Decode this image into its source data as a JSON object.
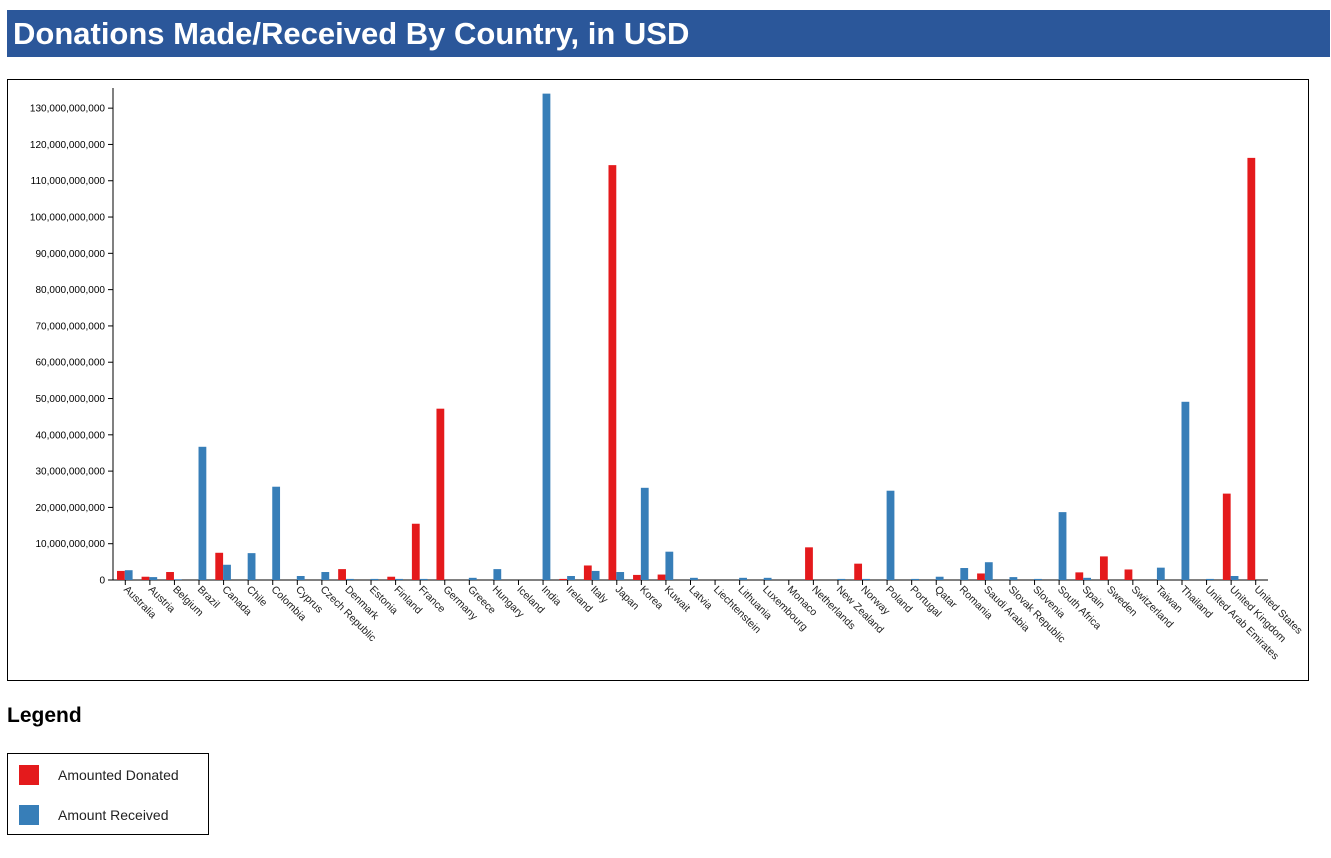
{
  "header": {
    "title": "Donations Made/Received By Country, in USD"
  },
  "legend": {
    "heading": "Legend",
    "items": [
      {
        "label": "Amounted Donated",
        "color": "#e41a1c"
      },
      {
        "label": "Amount Received",
        "color": "#377eb8"
      }
    ]
  },
  "chart_data": {
    "type": "bar",
    "title": "Donations Made/Received By Country, in USD",
    "xlabel": "",
    "ylabel": "",
    "ylim": [
      0,
      135000000000
    ],
    "ytick_step": 10000000000,
    "grid": false,
    "legend_position": "below chart",
    "categories": [
      "Australia",
      "Austria",
      "Belgium",
      "Brazil",
      "Canada",
      "Chile",
      "Colombia",
      "Cyprus",
      "Czech Republic",
      "Denmark",
      "Estonia",
      "Finland",
      "France",
      "Germany",
      "Greece",
      "Hungary",
      "Iceland",
      "India",
      "Ireland",
      "Italy",
      "Japan",
      "Korea",
      "Kuwait",
      "Latvia",
      "Liechtenstein",
      "Lithuania",
      "Luxembourg",
      "Monaco",
      "Netherlands",
      "New Zealand",
      "Norway",
      "Poland",
      "Portugal",
      "Qatar",
      "Romania",
      "Saudi Arabia",
      "Slovak Republic",
      "Slovenia",
      "South Africa",
      "Spain",
      "Sweden",
      "Switzerland",
      "Taiwan",
      "Thailand",
      "United Arab Emirates",
      "United Kingdom",
      "United States"
    ],
    "series": [
      {
        "name": "Amounted Donated",
        "color": "#e41a1c",
        "values": [
          2500000000,
          900000000,
          2200000000,
          0,
          7500000000,
          0,
          0,
          0,
          0,
          3000000000,
          0,
          900000000,
          15500000000,
          47200000000,
          0,
          0,
          0,
          0,
          300000000,
          4000000000,
          114300000000,
          1400000000,
          1500000000,
          0,
          0,
          0,
          0,
          0,
          9000000000,
          0,
          4500000000,
          0,
          0,
          0,
          0,
          1800000000,
          0,
          0,
          0,
          2100000000,
          6500000000,
          2900000000,
          0,
          0,
          0,
          23800000000,
          116300000000
        ]
      },
      {
        "name": "Amount Received",
        "color": "#377eb8",
        "values": [
          2700000000,
          800000000,
          200000000,
          36700000000,
          4200000000,
          7400000000,
          25700000000,
          1100000000,
          2200000000,
          300000000,
          300000000,
          300000000,
          300000000,
          0,
          600000000,
          3000000000,
          0,
          134000000000,
          1100000000,
          2500000000,
          2200000000,
          25400000000,
          7800000000,
          600000000,
          0,
          600000000,
          600000000,
          0,
          0,
          300000000,
          300000000,
          24600000000,
          300000000,
          900000000,
          3300000000,
          4900000000,
          800000000,
          300000000,
          18700000000,
          600000000,
          0,
          0,
          3400000000,
          49100000000,
          300000000,
          1100000000,
          0
        ]
      }
    ]
  }
}
